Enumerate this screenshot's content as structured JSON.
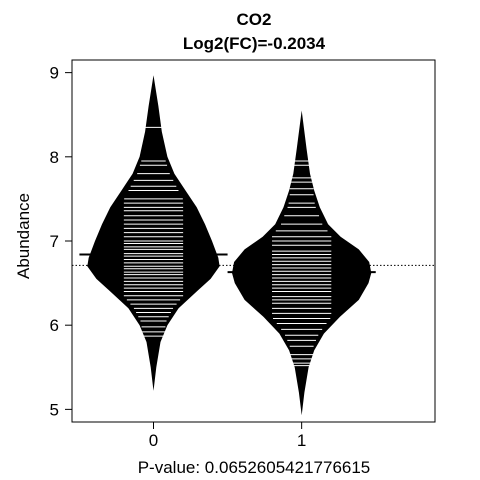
{
  "chart_data": {
    "type": "beanplot",
    "title": "CO2",
    "subtitle": "Log2(FC)=-0.2034",
    "ylabel": "Abundance",
    "xlabel": "P-value: 0.0652605421776615",
    "categories": [
      "0",
      "1"
    ],
    "ylim": [
      4.85,
      9.15
    ],
    "yticks": [
      5,
      6,
      7,
      8,
      9
    ],
    "overall_mean": 6.71,
    "colors": {
      "bean": "#000000",
      "lines": "#ffffff",
      "background": "#ffffff"
    },
    "series": [
      {
        "category": "0",
        "mean": 6.84,
        "min": 5.22,
        "max": 8.97,
        "density": [
          [
            5.22,
            0.0
          ],
          [
            5.5,
            0.04
          ],
          [
            5.8,
            0.1
          ],
          [
            6.0,
            0.2
          ],
          [
            6.2,
            0.36
          ],
          [
            6.4,
            0.62
          ],
          [
            6.55,
            0.82
          ],
          [
            6.7,
            0.95
          ],
          [
            6.8,
            0.93
          ],
          [
            7.0,
            0.84
          ],
          [
            7.2,
            0.74
          ],
          [
            7.4,
            0.62
          ],
          [
            7.6,
            0.46
          ],
          [
            7.8,
            0.3
          ],
          [
            8.0,
            0.2
          ],
          [
            8.3,
            0.12
          ],
          [
            8.6,
            0.07
          ],
          [
            8.97,
            0.0
          ]
        ],
        "observations": [
          8.35,
          7.95,
          7.9,
          7.8,
          7.72,
          7.65,
          7.6,
          7.5,
          7.45,
          7.4,
          7.36,
          7.3,
          7.25,
          7.2,
          7.15,
          7.1,
          7.05,
          7.0,
          6.97,
          6.93,
          6.9,
          6.85,
          6.82,
          6.78,
          6.74,
          6.7,
          6.67,
          6.63,
          6.6,
          6.56,
          6.52,
          6.48,
          6.44,
          6.4,
          6.35,
          6.3,
          6.25,
          6.2,
          6.15,
          6.1,
          6.05,
          5.98,
          5.92,
          5.87
        ]
      },
      {
        "category": "1",
        "mean": 6.63,
        "min": 4.93,
        "max": 8.55,
        "density": [
          [
            4.93,
            0.0
          ],
          [
            5.2,
            0.04
          ],
          [
            5.5,
            0.1
          ],
          [
            5.7,
            0.18
          ],
          [
            5.9,
            0.32
          ],
          [
            6.1,
            0.55
          ],
          [
            6.3,
            0.82
          ],
          [
            6.5,
            0.96
          ],
          [
            6.62,
            1.0
          ],
          [
            6.75,
            0.97
          ],
          [
            6.9,
            0.82
          ],
          [
            7.05,
            0.56
          ],
          [
            7.2,
            0.38
          ],
          [
            7.4,
            0.26
          ],
          [
            7.6,
            0.18
          ],
          [
            7.8,
            0.12
          ],
          [
            8.1,
            0.07
          ],
          [
            8.55,
            0.0
          ]
        ],
        "observations": [
          7.95,
          7.9,
          7.75,
          7.7,
          7.62,
          7.55,
          7.45,
          7.4,
          7.3,
          7.2,
          7.12,
          7.05,
          7.0,
          6.95,
          6.88,
          6.84,
          6.8,
          6.76,
          6.72,
          6.68,
          6.64,
          6.6,
          6.56,
          6.52,
          6.48,
          6.44,
          6.4,
          6.34,
          6.3,
          6.26,
          6.2,
          6.14,
          6.08,
          6.02,
          5.95,
          5.88,
          5.82,
          5.75,
          5.65,
          5.6,
          5.55,
          5.52
        ]
      }
    ]
  }
}
